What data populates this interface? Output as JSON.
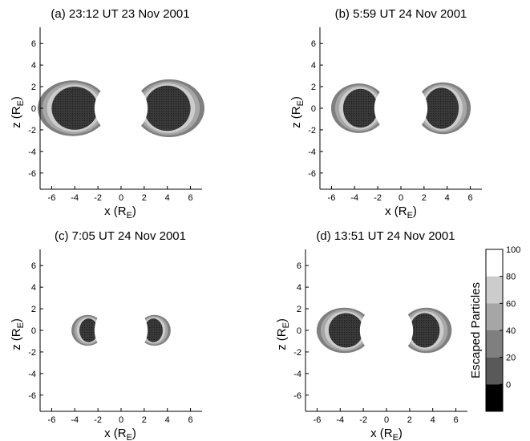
{
  "colors": {
    "band_0_20": "#595959",
    "band_20_40": "#7f7f7f",
    "band_40_60": "#a6a6a6",
    "band_60_80": "#cccccc",
    "band_80_100": "#ffffff",
    "core": "#333333"
  },
  "chart_data": [
    {
      "type": "heatmap",
      "title": "(a) 23:12 UT 23 Nov 2001",
      "xlabel": "x (R",
      "xlabel_sub": "E",
      "xlabel_end": ")",
      "ylabel": "z (R",
      "ylabel_sub": "E",
      "ylabel_end": ")",
      "xlim": [
        -7,
        7
      ],
      "ylim": [
        -7.5,
        7.5
      ],
      "xticks": [
        "-6",
        "-4",
        "-2",
        "0",
        "2",
        "4",
        "6"
      ],
      "yticks": [
        "6",
        "4",
        "2",
        "0",
        "-2",
        "-4",
        "-6"
      ],
      "earth_radius": 2.3,
      "lobes": [
        {
          "side": "left",
          "core_x": [
            -6.0,
            -2.0
          ],
          "core_z": 2.0,
          "rings": [
            0.35,
            0.7,
            1.05
          ]
        },
        {
          "side": "right",
          "core_x": [
            2.0,
            6.0
          ],
          "core_z": 2.1,
          "rings": [
            0.35,
            0.7,
            1.05
          ]
        }
      ]
    },
    {
      "type": "heatmap",
      "title": "(b) 5:59 UT 24 Nov 2001",
      "xlabel": "x (R",
      "xlabel_sub": "E",
      "xlabel_end": ")",
      "ylabel": "z (R",
      "ylabel_sub": "E",
      "ylabel_end": ")",
      "xlim": [
        -7,
        7
      ],
      "ylim": [
        -7.5,
        7.5
      ],
      "xticks": [
        "-6",
        "-4",
        "-2",
        "0",
        "2",
        "4",
        "6"
      ],
      "yticks": [
        "6",
        "4",
        "2",
        "0",
        "-2",
        "-4",
        "-6"
      ],
      "earth_radius": 2.3,
      "lobes": [
        {
          "side": "left",
          "core_x": [
            -5.0,
            -2.0
          ],
          "core_z": 1.8,
          "rings": [
            0.3,
            0.6,
            0.9
          ]
        },
        {
          "side": "right",
          "core_x": [
            2.0,
            5.0
          ],
          "core_z": 1.9,
          "rings": [
            0.3,
            0.6,
            0.9
          ]
        }
      ]
    },
    {
      "type": "heatmap",
      "title": "(c) 7:05 UT 24 Nov 2001",
      "xlabel": "x (R",
      "xlabel_sub": "E",
      "xlabel_end": ")",
      "ylabel": "z (R",
      "ylabel_sub": "E",
      "ylabel_end": ")",
      "xlim": [
        -7,
        7
      ],
      "ylim": [
        -7.5,
        7.5
      ],
      "xticks": [
        "-6",
        "-4",
        "-2",
        "0",
        "2",
        "4",
        "6"
      ],
      "yticks": [
        "6",
        "4",
        "2",
        "0",
        "-2",
        "-4",
        "-6"
      ],
      "earth_radius": 2.3,
      "lobes": [
        {
          "side": "left",
          "core_x": [
            -3.6,
            -2.0
          ],
          "core_z": 1.1,
          "rings": [
            0.2,
            0.4,
            0.6
          ]
        },
        {
          "side": "right",
          "core_x": [
            2.0,
            3.6
          ],
          "core_z": 1.1,
          "rings": [
            0.2,
            0.4,
            0.6
          ]
        }
      ]
    },
    {
      "type": "heatmap",
      "title": "(d) 13:51 UT 24 Nov 2001",
      "xlabel": "x (R",
      "xlabel_sub": "E",
      "xlabel_end": ")",
      "ylabel": "z (R",
      "ylabel_sub": "E",
      "ylabel_end": ")",
      "xlim": [
        -7,
        7
      ],
      "ylim": [
        -7.5,
        7.5
      ],
      "xticks": [
        "-6",
        "-4",
        "-2",
        "0",
        "2",
        "4",
        "6"
      ],
      "yticks": [
        "6",
        "4",
        "2",
        "0",
        "-2",
        "-4",
        "-6"
      ],
      "earth_radius": 2.3,
      "lobes": [
        {
          "side": "left",
          "core_x": [
            -5.0,
            -2.0
          ],
          "core_z": 1.6,
          "rings": [
            0.3,
            0.6,
            0.9
          ]
        },
        {
          "side": "right",
          "core_x": [
            2.0,
            4.6
          ],
          "core_z": 1.6,
          "rings": [
            0.3,
            0.6,
            0.9
          ]
        }
      ]
    }
  ],
  "colorbar": {
    "label": "Escaped Particles",
    "ticks": [
      "100",
      "80",
      "60",
      "40",
      "20",
      "0"
    ],
    "range": [
      0,
      100
    ],
    "levels": [
      {
        "from": 80,
        "to": 100,
        "color": "#ffffff"
      },
      {
        "from": 60,
        "to": 80,
        "color": "#cccccc"
      },
      {
        "from": 40,
        "to": 60,
        "color": "#a6a6a6"
      },
      {
        "from": 20,
        "to": 40,
        "color": "#7f7f7f"
      },
      {
        "from": 0,
        "to": 20,
        "color": "#595959"
      },
      {
        "from": -20,
        "to": 0,
        "color": "#000000"
      }
    ]
  }
}
